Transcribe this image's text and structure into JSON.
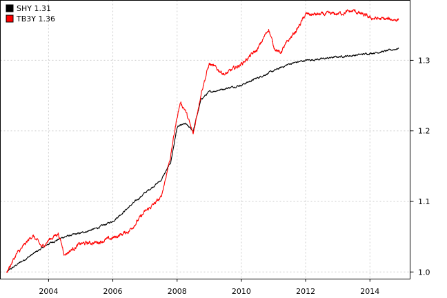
{
  "chart_data": {
    "type": "line",
    "title": "",
    "xlabel": "",
    "ylabel": "",
    "xlim": [
      2002.5,
      2015.25
    ],
    "ylim": [
      0.99,
      1.385
    ],
    "grid": true,
    "x_ticks": [
      2004,
      2006,
      2008,
      2010,
      2012,
      2014
    ],
    "x_tick_labels": [
      "2004",
      "2006",
      "2008",
      "2010",
      "2012",
      "2014"
    ],
    "y_ticks": [
      1.0,
      1.1,
      1.2,
      1.3
    ],
    "y_tick_labels": [
      "1.0",
      "1.1",
      "1.2",
      "1.3"
    ],
    "y_axis_side": "right",
    "legend_position": "top-left",
    "series": [
      {
        "name": "SHY 1.31",
        "color": "#000000",
        "x": [
          2002.7,
          2003.0,
          2003.5,
          2004.0,
          2004.5,
          2005.0,
          2005.5,
          2006.0,
          2006.5,
          2007.0,
          2007.5,
          2007.8,
          2008.0,
          2008.25,
          2008.5,
          2008.75,
          2009.0,
          2009.5,
          2010.0,
          2010.5,
          2011.0,
          2011.5,
          2012.0,
          2012.5,
          2013.0,
          2013.5,
          2014.0,
          2014.5,
          2014.9
        ],
        "values": [
          1.0,
          1.01,
          1.025,
          1.04,
          1.05,
          1.055,
          1.062,
          1.072,
          1.092,
          1.112,
          1.13,
          1.155,
          1.205,
          1.21,
          1.2,
          1.245,
          1.255,
          1.26,
          1.265,
          1.275,
          1.285,
          1.295,
          1.3,
          1.302,
          1.305,
          1.307,
          1.31,
          1.313,
          1.317
        ]
      },
      {
        "name": "TB3Y 1.36",
        "color": "#ff0000",
        "x": [
          2002.7,
          2003.0,
          2003.2,
          2003.5,
          2003.8,
          2004.0,
          2004.3,
          2004.5,
          2005.0,
          2005.5,
          2006.0,
          2006.5,
          2007.0,
          2007.5,
          2007.8,
          2008.0,
          2008.1,
          2008.25,
          2008.5,
          2008.75,
          2009.0,
          2009.5,
          2010.0,
          2010.5,
          2010.85,
          2011.0,
          2011.2,
          2011.5,
          2011.75,
          2012.0,
          2012.5,
          2013.0,
          2013.5,
          2013.75,
          2014.0,
          2014.5,
          2014.9
        ],
        "values": [
          1.0,
          1.025,
          1.035,
          1.052,
          1.035,
          1.045,
          1.055,
          1.025,
          1.04,
          1.042,
          1.048,
          1.058,
          1.085,
          1.105,
          1.165,
          1.22,
          1.24,
          1.23,
          1.195,
          1.255,
          1.295,
          1.28,
          1.295,
          1.315,
          1.345,
          1.32,
          1.31,
          1.33,
          1.345,
          1.365,
          1.365,
          1.366,
          1.37,
          1.365,
          1.36,
          1.358,
          1.358
        ]
      }
    ]
  }
}
